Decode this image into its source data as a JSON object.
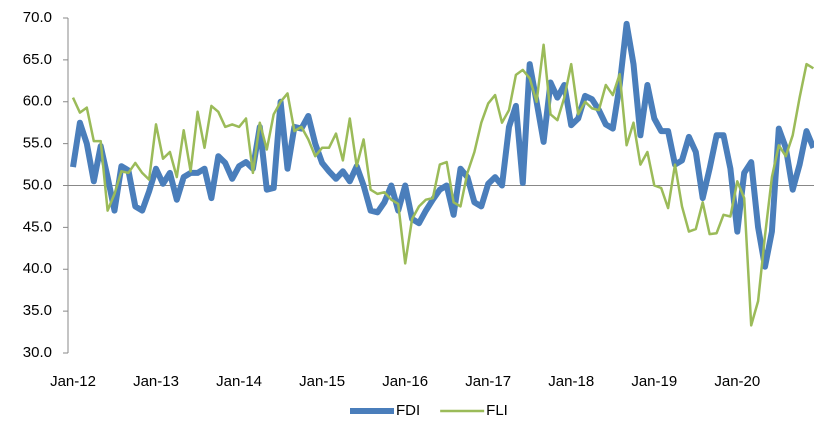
{
  "chart_data": {
    "type": "line",
    "categories": [
      "Jan-12",
      null,
      null,
      null,
      null,
      null,
      null,
      null,
      null,
      null,
      null,
      null,
      "Jan-13",
      null,
      null,
      null,
      null,
      null,
      null,
      null,
      null,
      null,
      null,
      null,
      "Jan-14",
      null,
      null,
      null,
      null,
      null,
      null,
      null,
      null,
      null,
      null,
      null,
      "Jan-15",
      null,
      null,
      null,
      null,
      null,
      null,
      null,
      null,
      null,
      null,
      null,
      "Jan-16",
      null,
      null,
      null,
      null,
      null,
      null,
      null,
      null,
      null,
      null,
      null,
      "Jan-17",
      null,
      null,
      null,
      null,
      null,
      null,
      null,
      null,
      null,
      null,
      null,
      "Jan-18",
      null,
      null,
      null,
      null,
      null,
      null,
      null,
      null,
      null,
      null,
      null,
      "Jan-19",
      null,
      null,
      null,
      null,
      null,
      null,
      null,
      null,
      null,
      null,
      null,
      "Jan-20",
      null,
      null,
      null,
      null,
      null,
      null,
      null,
      null,
      null,
      null,
      null
    ],
    "series": [
      {
        "name": "FDI",
        "color": "#4a7ebb",
        "values": [
          52.2,
          57.5,
          55,
          50.5,
          54.7,
          51,
          47,
          52.3,
          51.8,
          47.5,
          47,
          49.3,
          52,
          50.2,
          51.5,
          48.3,
          51,
          51.5,
          51.5,
          52,
          48.5,
          53.5,
          52.7,
          50.8,
          52.3,
          52.8,
          52,
          57,
          49.5,
          49.7,
          60,
          52,
          57,
          56.8,
          58.3,
          55,
          52.7,
          51.7,
          50.8,
          51.7,
          50.5,
          52.3,
          50,
          47,
          46.8,
          48,
          50,
          47,
          50,
          46,
          45.5,
          47,
          48.3,
          49.5,
          50,
          46.5,
          52,
          51,
          48,
          47.5,
          50.2,
          51,
          50,
          57,
          59.5,
          50.3,
          64.5,
          60,
          55.2,
          62.3,
          60.5,
          62,
          57.2,
          58,
          60.7,
          60.3,
          59,
          57.3,
          56.8,
          62,
          69.3,
          64.5,
          56,
          62,
          58,
          56.5,
          56.5,
          52.5,
          53,
          55.8,
          54,
          48.5,
          52,
          56,
          56,
          52,
          44.5,
          51.5,
          52.8,
          45,
          40.3,
          44.5,
          56.8,
          54.5,
          49.5,
          52.5,
          56.5,
          54.5
        ]
      },
      {
        "name": "FLI",
        "color": "#9bbb59",
        "values": [
          60.5,
          58.7,
          59.3,
          55.3,
          55.3,
          47,
          49,
          51.7,
          51.5,
          52.7,
          51.5,
          50.7,
          57.3,
          53.2,
          54,
          51,
          56.6,
          51.7,
          58.8,
          54.5,
          59.5,
          58.8,
          57,
          57.3,
          57,
          58,
          51.5,
          57.5,
          54.3,
          58.5,
          60,
          61,
          56.5,
          57,
          55.5,
          53.5,
          54.5,
          54.5,
          56.2,
          53,
          58,
          52.3,
          55.5,
          49.5,
          49,
          49.2,
          48.3,
          47.8,
          40.7,
          46,
          47.5,
          48.3,
          48.5,
          52.5,
          52.8,
          48,
          47.5,
          51.5,
          54,
          57.5,
          59.8,
          60.8,
          57.5,
          59,
          63.2,
          63.8,
          62.8,
          60,
          66.8,
          58.5,
          57.8,
          60.5,
          64.5,
          58.5,
          60,
          59.2,
          59,
          62,
          60.8,
          63.3,
          54.8,
          57.5,
          52.5,
          54,
          50,
          49.7,
          47.3,
          52.5,
          47.5,
          44.5,
          44.8,
          48,
          44.2,
          44.3,
          46.5,
          46.3,
          50.5,
          48.5,
          33.3,
          36.2,
          44,
          51,
          54.8,
          53.5,
          56,
          60.5,
          64.5,
          64
        ]
      }
    ],
    "ylim": [
      30,
      70
    ],
    "yticks": [
      {
        "value": 30,
        "label": "30.0"
      },
      {
        "value": 35,
        "label": "35.0"
      },
      {
        "value": 40,
        "label": "40.0"
      },
      {
        "value": 45,
        "label": "45.0"
      },
      {
        "value": 50,
        "label": "50.0"
      },
      {
        "value": 55,
        "label": "55.0"
      },
      {
        "value": 60,
        "label": "60.0"
      },
      {
        "value": 65,
        "label": "65.0"
      },
      {
        "value": 70,
        "label": "70.0"
      }
    ],
    "x_axis_at": 50,
    "grid": false,
    "legend": "bottom"
  }
}
